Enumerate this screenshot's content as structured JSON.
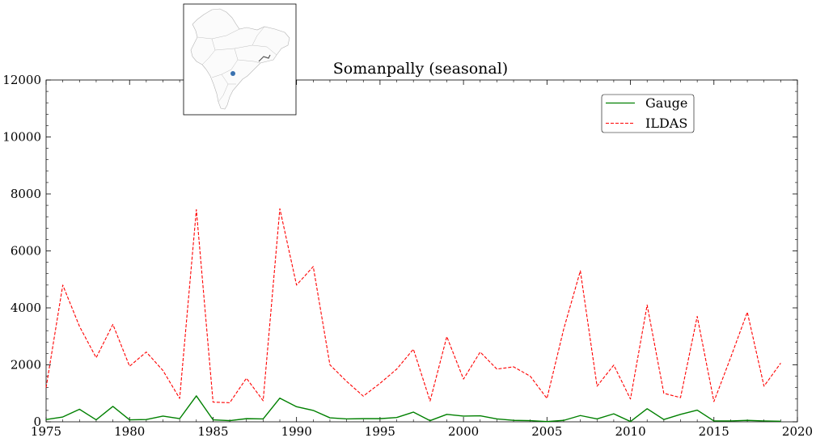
{
  "chart_data": {
    "type": "line",
    "title": "Somanpally (seasonal)",
    "xlabel": "",
    "ylabel": "",
    "xlim": [
      1975,
      2020
    ],
    "ylim": [
      0,
      12000
    ],
    "grid": false,
    "legend_position": "top-right",
    "x_ticks": [
      1975,
      1980,
      1985,
      1990,
      1995,
      2000,
      2005,
      2010,
      2015,
      2020
    ],
    "y_ticks": [
      0,
      2000,
      4000,
      6000,
      8000,
      10000,
      12000
    ],
    "x": [
      1975,
      1976,
      1977,
      1978,
      1979,
      1980,
      1981,
      1982,
      1983,
      1984,
      1985,
      1986,
      1987,
      1988,
      1989,
      1990,
      1991,
      1992,
      1993,
      1994,
      1995,
      1996,
      1997,
      1998,
      1999,
      2000,
      2001,
      2002,
      2003,
      2004,
      2005,
      2006,
      2007,
      2008,
      2009,
      2010,
      2011,
      2012,
      2013,
      2014,
      2015,
      2016,
      2017,
      2018,
      2019
    ],
    "series": [
      {
        "name": "Gauge",
        "color": "#008000",
        "style": "solid",
        "values": [
          80,
          170,
          440,
          70,
          540,
          70,
          80,
          200,
          110,
          910,
          70,
          40,
          110,
          100,
          830,
          530,
          400,
          140,
          100,
          110,
          110,
          150,
          340,
          40,
          260,
          200,
          210,
          100,
          50,
          40,
          10,
          50,
          220,
          100,
          280,
          10,
          460,
          80,
          260,
          410,
          30,
          30,
          50,
          30,
          20
        ]
      },
      {
        "name": "ILDAS",
        "color": "#ff0000",
        "style": "dashed",
        "values": [
          1200,
          4800,
          3350,
          2250,
          3420,
          1950,
          2450,
          1800,
          820,
          7450,
          690,
          670,
          1530,
          740,
          7480,
          4800,
          5450,
          2000,
          1420,
          900,
          1350,
          1850,
          2550,
          730,
          2990,
          1500,
          2450,
          1850,
          1930,
          1600,
          820,
          3250,
          5300,
          1250,
          1990,
          800,
          4100,
          1000,
          850,
          3700,
          710,
          2250,
          3850,
          1250,
          2060
        ]
      }
    ]
  },
  "inset_map": {
    "marker_color": "#3a72b0"
  }
}
